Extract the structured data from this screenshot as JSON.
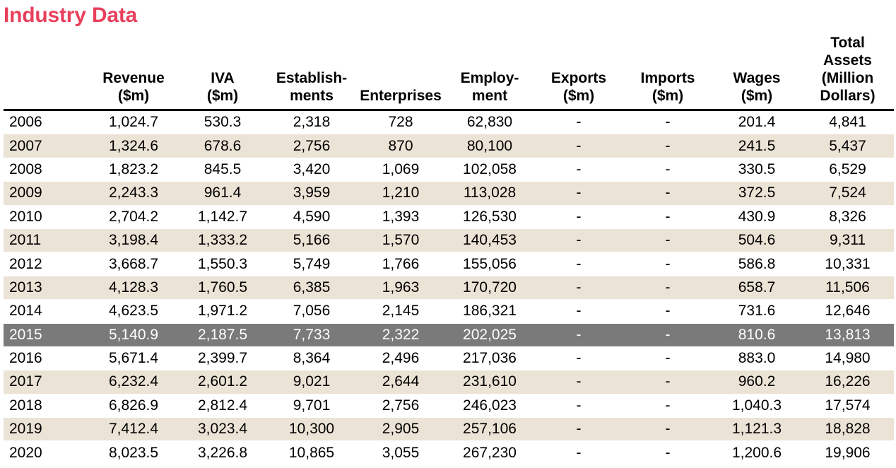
{
  "title": "Industry Data",
  "colors": {
    "title": "#e8405c",
    "shaded_row": "#ebe3d5",
    "highlight_row": "#7a7a7a"
  },
  "table": {
    "headers": [
      [
        ""
      ],
      [
        "Revenue",
        "($m)"
      ],
      [
        "IVA",
        "($m)"
      ],
      [
        "Establish-",
        "ments"
      ],
      [
        "Enterprises"
      ],
      [
        "Employ-",
        "ment"
      ],
      [
        "Exports",
        "($m)"
      ],
      [
        "Imports",
        "($m)"
      ],
      [
        "Wages",
        "($m)"
      ],
      [
        "Total",
        "Assets",
        "(Million",
        "Dollars)"
      ]
    ],
    "highlight_year": "2015",
    "rows": [
      [
        "2006",
        "1,024.7",
        "530.3",
        "2,318",
        "728",
        "62,830",
        "-",
        "-",
        "201.4",
        "4,841"
      ],
      [
        "2007",
        "1,324.6",
        "678.6",
        "2,756",
        "870",
        "80,100",
        "-",
        "-",
        "241.5",
        "5,437"
      ],
      [
        "2008",
        "1,823.2",
        "845.5",
        "3,420",
        "1,069",
        "102,058",
        "-",
        "-",
        "330.5",
        "6,529"
      ],
      [
        "2009",
        "2,243.3",
        "961.4",
        "3,959",
        "1,210",
        "113,028",
        "-",
        "-",
        "372.5",
        "7,524"
      ],
      [
        "2010",
        "2,704.2",
        "1,142.7",
        "4,590",
        "1,393",
        "126,530",
        "-",
        "-",
        "430.9",
        "8,326"
      ],
      [
        "2011",
        "3,198.4",
        "1,333.2",
        "5,166",
        "1,570",
        "140,453",
        "-",
        "-",
        "504.6",
        "9,311"
      ],
      [
        "2012",
        "3,668.7",
        "1,550.3",
        "5,749",
        "1,766",
        "155,056",
        "-",
        "-",
        "586.8",
        "10,331"
      ],
      [
        "2013",
        "4,128.3",
        "1,760.5",
        "6,385",
        "1,963",
        "170,720",
        "-",
        "-",
        "658.7",
        "11,506"
      ],
      [
        "2014",
        "4,623.5",
        "1,971.2",
        "7,056",
        "2,145",
        "186,321",
        "-",
        "-",
        "731.6",
        "12,646"
      ],
      [
        "2015",
        "5,140.9",
        "2,187.5",
        "7,733",
        "2,322",
        "202,025",
        "-",
        "-",
        "810.6",
        "13,813"
      ],
      [
        "2016",
        "5,671.4",
        "2,399.7",
        "8,364",
        "2,496",
        "217,036",
        "-",
        "-",
        "883.0",
        "14,980"
      ],
      [
        "2017",
        "6,232.4",
        "2,601.2",
        "9,021",
        "2,644",
        "231,610",
        "-",
        "-",
        "960.2",
        "16,226"
      ],
      [
        "2018",
        "6,826.9",
        "2,812.4",
        "9,701",
        "2,756",
        "246,023",
        "-",
        "-",
        "1,040.3",
        "17,574"
      ],
      [
        "2019",
        "7,412.4",
        "3,023.4",
        "10,300",
        "2,905",
        "257,106",
        "-",
        "-",
        "1,121.3",
        "18,828"
      ],
      [
        "2020",
        "8,023.5",
        "3,226.8",
        "10,865",
        "3,055",
        "267,230",
        "-",
        "-",
        "1,200.6",
        "19,906"
      ]
    ]
  }
}
